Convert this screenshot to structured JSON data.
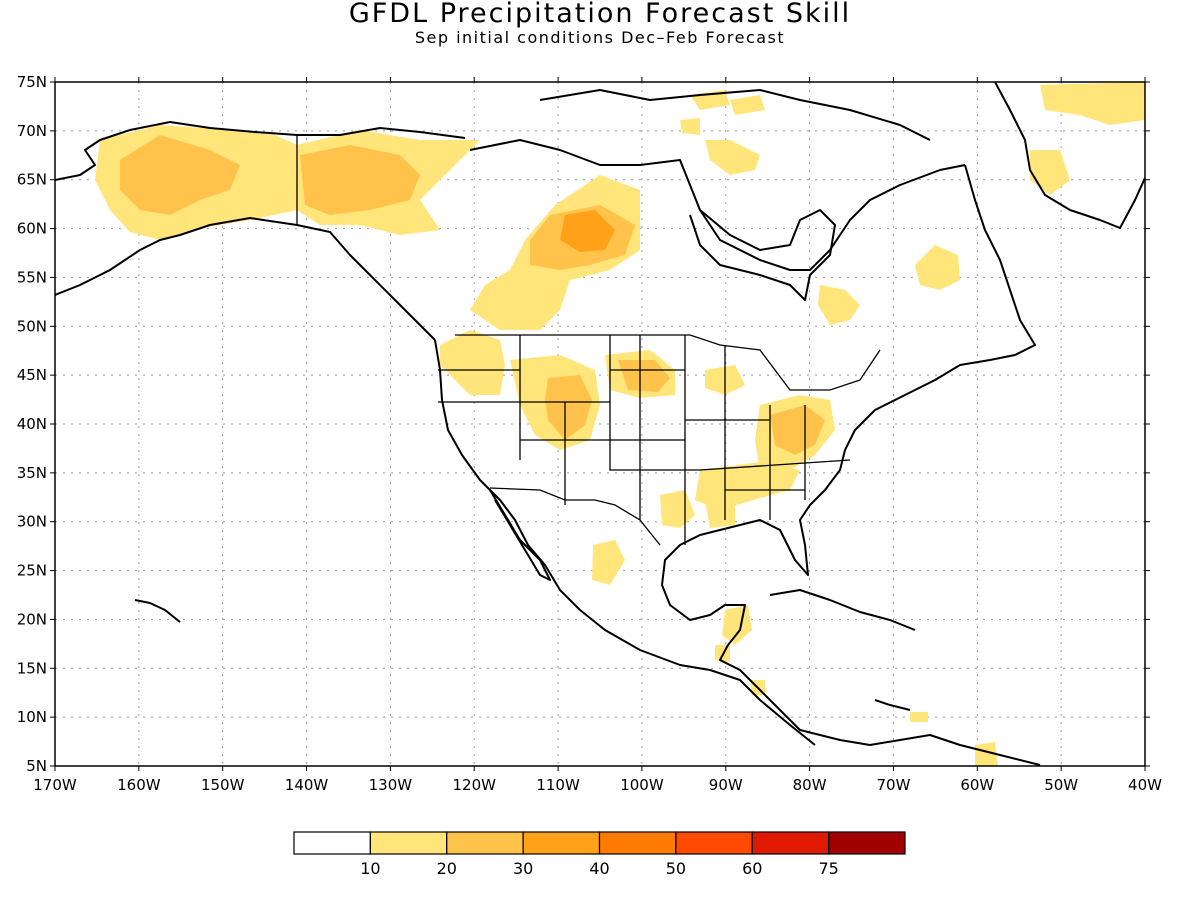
{
  "title": "GFDL Precipitation Forecast Skill",
  "subtitle": "Sep initial conditions  Dec–Feb Forecast",
  "map": {
    "lon_range": [
      -170,
      -40
    ],
    "lat_range": [
      5,
      75
    ],
    "lat_ticks": [
      "75N",
      "70N",
      "65N",
      "60N",
      "55N",
      "50N",
      "45N",
      "40N",
      "35N",
      "30N",
      "25N",
      "20N",
      "15N",
      "10N",
      "5N"
    ],
    "lon_ticks": [
      "170W",
      "160W",
      "150W",
      "140W",
      "130W",
      "120W",
      "110W",
      "100W",
      "90W",
      "80W",
      "70W",
      "60W",
      "50W",
      "40W"
    ],
    "grid": true
  },
  "colorbar": {
    "colors": [
      "#ffffff",
      "#ffe57a",
      "#ffc24a",
      "#ffa21a",
      "#ff7a00",
      "#ff4a00",
      "#e01a00",
      "#a00000"
    ],
    "labels": [
      "10",
      "20",
      "30",
      "40",
      "50",
      "60",
      "75"
    ]
  }
}
